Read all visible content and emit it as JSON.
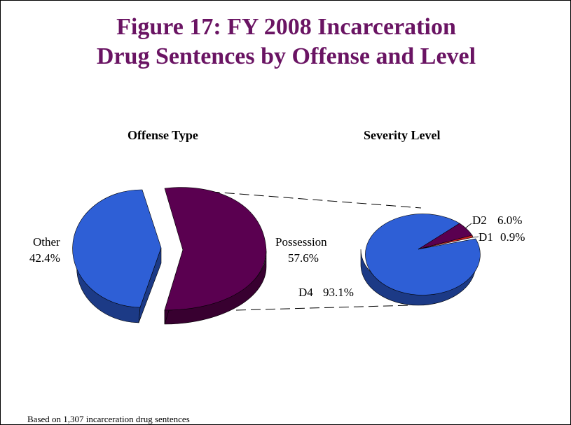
{
  "figure": {
    "title_line1": "Figure 17: FY 2008 Incarceration",
    "title_line2": "Drug Sentences by Offense and Level",
    "footnote": "Based on 1,307 incarceration drug sentences"
  },
  "colors": {
    "title": "#6a1463",
    "blue": "#2e5fd6",
    "blue_side": "#1c3a86",
    "purple": "#5a0050",
    "purple_side": "#380030",
    "red": "#cc2222"
  },
  "chart_data": [
    {
      "type": "pie",
      "title": "Offense Type",
      "slices": [
        {
          "name": "Other",
          "value": 42.4,
          "label": "42.4%",
          "color": "#2e5fd6",
          "exploded": true
        },
        {
          "name": "Possession",
          "value": 57.6,
          "label": "57.6%",
          "color": "#5a0050",
          "exploded": false
        }
      ]
    },
    {
      "type": "pie",
      "title": "Severity Level",
      "breakdown_of": "Possession",
      "slices": [
        {
          "name": "D4",
          "value": 93.1,
          "label": "93.1%",
          "color": "#2e5fd6"
        },
        {
          "name": "D2",
          "value": 6.0,
          "label": "6.0%",
          "color": "#5a0050"
        },
        {
          "name": "D1",
          "value": 0.9,
          "label": "0.9%",
          "color": "#cc2222"
        }
      ]
    }
  ]
}
